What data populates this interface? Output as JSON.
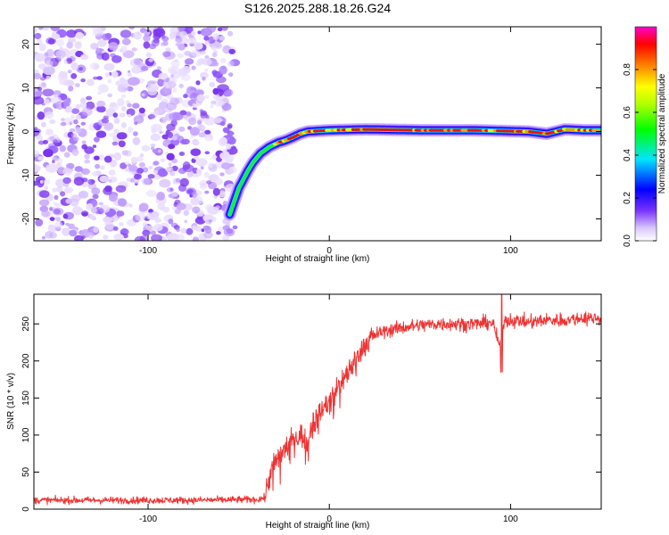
{
  "figure": {
    "title": "S126.2025.288.18.26.G24"
  },
  "chart_data": [
    {
      "type": "heatmap",
      "title": "S126.2025.288.18.26.G24",
      "xlabel": "Height of straight line (km)",
      "ylabel": "Frequency (Hz)",
      "xlim": [
        -163,
        150
      ],
      "ylim": [
        -25,
        24
      ],
      "x_ticks": [
        -100,
        0,
        100
      ],
      "x_tick_labels": [
        "-100",
        "0",
        "100"
      ],
      "y_ticks": [
        -20,
        -10,
        0,
        10,
        20
      ],
      "y_tick_labels": [
        "-20",
        "-10",
        "0",
        "10",
        "20"
      ],
      "noise_region_x": [
        -163,
        -50
      ],
      "ridge": {
        "x": [
          -55,
          -50,
          -45,
          -42,
          -38,
          -33,
          -28,
          -24,
          -20,
          -16,
          -12,
          0,
          20,
          50,
          80,
          110,
          120,
          130,
          140,
          150
        ],
        "freq": [
          -19,
          -13,
          -9,
          -7,
          -5,
          -3.5,
          -2.5,
          -2,
          -1.3,
          -0.5,
          0,
          0.3,
          0.5,
          0.3,
          0.3,
          0,
          -0.5,
          0.5,
          0.3,
          0.3
        ]
      },
      "colorbar": {
        "label": "Normalized spectral amplitude",
        "range": [
          0,
          1
        ],
        "ticks": [
          0.0,
          0.2,
          0.4,
          0.6,
          0.8
        ],
        "tick_labels": [
          "0.0",
          "0.2",
          "0.4",
          "0.6",
          "0.8"
        ],
        "colors": [
          "#ffffff",
          "#6633ff",
          "#0000ff",
          "#00ffff",
          "#00ff00",
          "#ffff00",
          "#ff7f00",
          "#ff0000",
          "#ff00cc"
        ]
      }
    },
    {
      "type": "line",
      "xlabel": "Height of straight line (km)",
      "ylabel": "SNR (10 * v/v)",
      "xlim": [
        -163,
        150
      ],
      "ylim": [
        0,
        290
      ],
      "x_ticks": [
        -100,
        0,
        100
      ],
      "x_tick_labels": [
        "-100",
        "0",
        "100"
      ],
      "y_ticks": [
        0,
        50,
        100,
        150,
        200,
        250
      ],
      "y_tick_labels": [
        "0",
        "50",
        "100",
        "150",
        "200",
        "250"
      ],
      "line_color": "#ee3333",
      "series": [
        {
          "name": "SNR",
          "x": [
            -163,
            -120,
            -80,
            -40,
            -36,
            -33,
            -30,
            -25,
            -20,
            -15,
            -12,
            -10,
            -5,
            0,
            5,
            10,
            15,
            20,
            25,
            30,
            40,
            50,
            60,
            80,
            90,
            94,
            95,
            96,
            100,
            110,
            120,
            130,
            140,
            150
          ],
          "y": [
            12,
            12,
            12,
            13,
            15,
            45,
            60,
            80,
            95,
            100,
            85,
            115,
            130,
            145,
            165,
            185,
            205,
            225,
            235,
            240,
            245,
            248,
            250,
            250,
            252,
            220,
            185,
            255,
            255,
            252,
            255,
            255,
            258,
            258
          ]
        }
      ]
    }
  ]
}
